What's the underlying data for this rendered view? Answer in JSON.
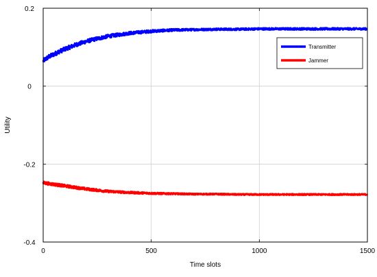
{
  "chart_data": {
    "type": "line",
    "title": "",
    "xlabel": "Time slots",
    "ylabel": "Utility",
    "xlim": [
      0,
      1500
    ],
    "ylim": [
      -0.4,
      0.2
    ],
    "xticks": [
      0,
      500,
      1000,
      1500
    ],
    "xtick_labels": [
      "0",
      "500",
      "1000",
      "1500"
    ],
    "yticks": [
      -0.4,
      -0.2,
      0,
      0.2
    ],
    "ytick_labels": [
      "-0.4",
      "-0.2",
      "0",
      "0.2"
    ],
    "grid": true,
    "legend_position": "top-right",
    "series": [
      {
        "name": "Transmitter",
        "color": "#0000ff",
        "x": [
          0,
          25,
          50,
          75,
          100,
          150,
          200,
          250,
          300,
          400,
          500,
          600,
          700,
          800,
          900,
          1000,
          1100,
          1200,
          1300,
          1400,
          1500
        ],
        "y": [
          0.065,
          0.075,
          0.082,
          0.089,
          0.095,
          0.106,
          0.115,
          0.122,
          0.128,
          0.136,
          0.141,
          0.144,
          0.145,
          0.146,
          0.146,
          0.147,
          0.147,
          0.147,
          0.147,
          0.147,
          0.147
        ],
        "noise": 0.006
      },
      {
        "name": "Jammer",
        "color": "#ff0000",
        "x": [
          0,
          25,
          50,
          75,
          100,
          150,
          200,
          250,
          300,
          400,
          500,
          600,
          700,
          800,
          900,
          1000,
          1100,
          1200,
          1300,
          1400,
          1500
        ],
        "y": [
          -0.248,
          -0.25,
          -0.252,
          -0.254,
          -0.256,
          -0.26,
          -0.264,
          -0.267,
          -0.27,
          -0.273,
          -0.275,
          -0.276,
          -0.277,
          -0.277,
          -0.278,
          -0.278,
          -0.278,
          -0.278,
          -0.278,
          -0.278,
          -0.278
        ],
        "noise": 0.004
      }
    ]
  }
}
